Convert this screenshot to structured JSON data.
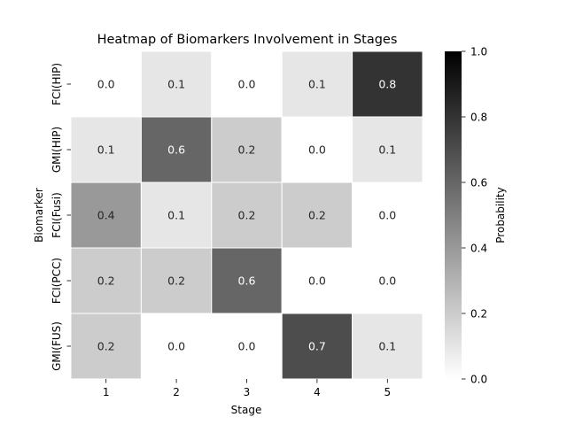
{
  "chart_data": {
    "type": "heatmap",
    "title": "Heatmap of Biomarkers Involvement in Stages",
    "xlabel": "Stage",
    "ylabel": "Biomarker",
    "x_categories": [
      "1",
      "2",
      "3",
      "4",
      "5"
    ],
    "y_categories": [
      "FCI(HIP)",
      "GMI(HIP)",
      "FCI(Fusi)",
      "FCI(PCC)",
      "GMI(FUS)"
    ],
    "values": [
      [
        0.0,
        0.1,
        0.0,
        0.1,
        0.8
      ],
      [
        0.1,
        0.6,
        0.2,
        0.0,
        0.1
      ],
      [
        0.4,
        0.1,
        0.2,
        0.2,
        0.0
      ],
      [
        0.2,
        0.2,
        0.6,
        0.0,
        0.0
      ],
      [
        0.2,
        0.0,
        0.0,
        0.7,
        0.1
      ]
    ],
    "value_format": "0.0",
    "colormap": "Greys",
    "colorbar": {
      "label": "Probability",
      "range": [
        0.0,
        1.0
      ],
      "ticks": [
        "0.0",
        "0.2",
        "0.4",
        "0.6",
        "0.8",
        "1.0"
      ]
    },
    "cell_border_color": "#ffffff",
    "grid": false
  }
}
